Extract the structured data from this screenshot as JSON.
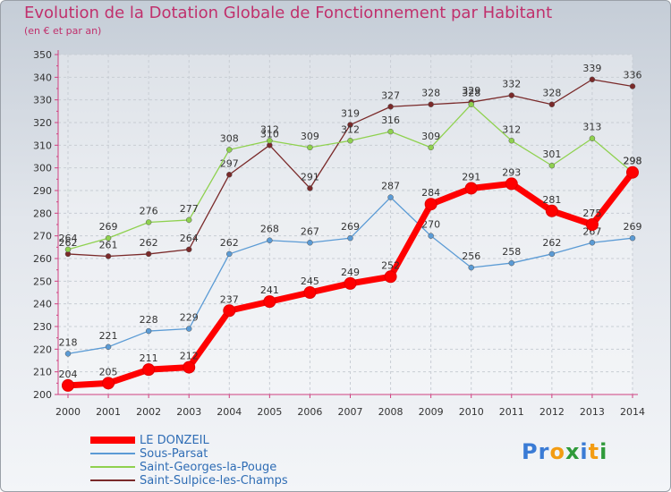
{
  "chart_data": {
    "type": "line",
    "title": "Evolution de la Dotation Globale de Fonctionnement par Habitant",
    "subtitle": "(en € et par an)",
    "x": [
      "2000",
      "2001",
      "2002",
      "2003",
      "2004",
      "2005",
      "2006",
      "2007",
      "2008",
      "2009",
      "2010",
      "2011",
      "2012",
      "2013",
      "2014"
    ],
    "ylim": [
      200,
      350
    ],
    "yticks": [
      200,
      210,
      220,
      230,
      240,
      250,
      260,
      270,
      280,
      290,
      300,
      310,
      320,
      330,
      340,
      350
    ],
    "grid": true,
    "legend_position": "bottom-left",
    "series": [
      {
        "name": "LE DONZEIL",
        "color": "#ff0000",
        "values": [
          204,
          205,
          211,
          212,
          237,
          241,
          245,
          249,
          252,
          284,
          291,
          293,
          281,
          275,
          298
        ]
      },
      {
        "name": "Sous-Parsat",
        "color": "#5b9bd5",
        "values": [
          218,
          221,
          228,
          229,
          262,
          268,
          267,
          269,
          287,
          270,
          256,
          258,
          262,
          267,
          269
        ]
      },
      {
        "name": "Saint-Georges-la-Pouge",
        "color": "#8fd14f",
        "values": [
          264,
          269,
          276,
          277,
          308,
          312,
          309,
          312,
          316,
          309,
          328,
          312,
          301,
          313,
          298
        ]
      },
      {
        "name": "Saint-Sulpice-les-Champs",
        "color": "#7a2a2a",
        "values": [
          262,
          261,
          262,
          264,
          297,
          310,
          291,
          319,
          327,
          328,
          329,
          332,
          328,
          339,
          336
        ]
      }
    ]
  },
  "logo": {
    "text": "Proxiti",
    "letters": [
      "P",
      "r",
      "o",
      "x",
      "i",
      "t",
      "i"
    ],
    "colors": [
      "#3a7bd5",
      "#3a7bd5",
      "#f39c12",
      "#2f9a3a",
      "#3a7bd5",
      "#f39c12",
      "#2f9a3a"
    ]
  }
}
